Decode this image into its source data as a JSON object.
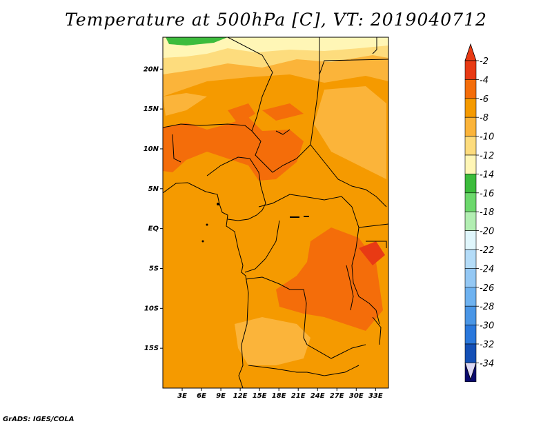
{
  "title": "Temperature at 500hPa [C], VT: 2019040712",
  "footer": "GrADS: IGES/COLA",
  "map": {
    "lon_range": [
      0,
      35
    ],
    "lat_range": [
      -20,
      24
    ],
    "lat_ticks": [
      {
        "value": 20,
        "label": "20N"
      },
      {
        "value": 15,
        "label": "15N"
      },
      {
        "value": 10,
        "label": "10N"
      },
      {
        "value": 5,
        "label": "5N"
      },
      {
        "value": 0,
        "label": "EQ"
      },
      {
        "value": -5,
        "label": "5S"
      },
      {
        "value": -10,
        "label": "10S"
      },
      {
        "value": -15,
        "label": "15S"
      }
    ],
    "lon_ticks": [
      {
        "value": 3,
        "label": "3E"
      },
      {
        "value": 6,
        "label": "6E"
      },
      {
        "value": 9,
        "label": "9E"
      },
      {
        "value": 12,
        "label": "12E"
      },
      {
        "value": 15,
        "label": "15E"
      },
      {
        "value": 18,
        "label": "18E"
      },
      {
        "value": 21,
        "label": "21E"
      },
      {
        "value": 24,
        "label": "24E"
      },
      {
        "value": 27,
        "label": "27E"
      },
      {
        "value": 30,
        "label": "30E"
      },
      {
        "value": 33,
        "label": "33E"
      }
    ],
    "dominant_range": "-8 to -6 °C"
  },
  "colorbar": {
    "labels": [
      "-2",
      "-4",
      "-6",
      "-8",
      "-10",
      "-12",
      "-14",
      "-16",
      "-18",
      "-20",
      "-22",
      "-24",
      "-26",
      "-28",
      "-30",
      "-32",
      "-34"
    ],
    "colors": [
      "#e83a14",
      "#f46d0a",
      "#f59a00",
      "#fbb43a",
      "#fddc7d",
      "#fff6b6",
      "#3cbc3c",
      "#6cd86c",
      "#b2eeb2",
      "#e0f6fc",
      "#b4dcf8",
      "#94c8f4",
      "#6eb2f0",
      "#4a96e6",
      "#2a78dc",
      "#1450b6",
      "#0a0a6e"
    ],
    "top_tip_color": "#e83a14",
    "bottom_tip_color": "#dcd8f4"
  }
}
